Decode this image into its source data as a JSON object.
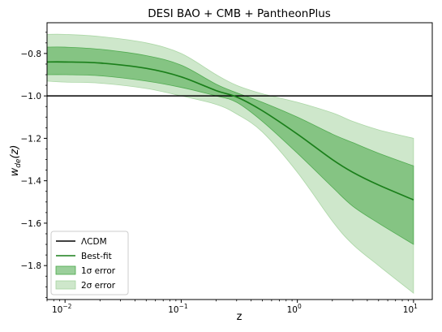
{
  "chart_data": {
    "type": "line",
    "title": "DESI BAO + CMB + PantheonPlus",
    "xlabel": "z",
    "ylabel": "w_de(z)",
    "xscale": "log",
    "xlim": [
      0.007,
      14.5
    ],
    "ylim": [
      -1.96,
      -0.655
    ],
    "grid": false,
    "legend_position": "lower-left",
    "x_ticks": [
      {
        "value": 0.01,
        "base": "10",
        "exp": "−2"
      },
      {
        "value": 0.1,
        "base": "10",
        "exp": "−1"
      },
      {
        "value": 1,
        "base": "10",
        "exp": "0"
      },
      {
        "value": 10,
        "base": "10",
        "exp": "1"
      }
    ],
    "y_ticks": [
      {
        "value": -0.8,
        "label": "−0.8"
      },
      {
        "value": -1.0,
        "label": "−1.0"
      },
      {
        "value": -1.2,
        "label": "−1.2"
      },
      {
        "value": -1.4,
        "label": "−1.4"
      },
      {
        "value": -1.6,
        "label": "−1.6"
      },
      {
        "value": -1.8,
        "label": "−1.8"
      }
    ],
    "x": [
      0.007,
      0.01,
      0.02,
      0.05,
      0.1,
      0.2,
      0.3,
      0.5,
      1,
      2,
      3,
      5,
      10
    ],
    "series": [
      {
        "name": "ΛCDM",
        "kind": "hline",
        "y": -1.0,
        "color": "#000000"
      },
      {
        "name": "Best-fit",
        "kind": "line",
        "color": "#1a7f1a",
        "values": [
          -0.84,
          -0.84,
          -0.845,
          -0.87,
          -0.91,
          -0.975,
          -1.005,
          -1.07,
          -1.18,
          -1.3,
          -1.36,
          -1.42,
          -1.49
        ]
      },
      {
        "name": "1σ error",
        "kind": "band",
        "color": "#49a749",
        "opacity": 0.55,
        "lower": [
          -0.9,
          -0.9,
          -0.905,
          -0.93,
          -0.96,
          -1.0,
          -1.03,
          -1.12,
          -1.27,
          -1.43,
          -1.52,
          -1.6,
          -1.7
        ],
        "upper": [
          -0.77,
          -0.77,
          -0.78,
          -0.81,
          -0.855,
          -0.945,
          -0.985,
          -1.03,
          -1.1,
          -1.18,
          -1.22,
          -1.27,
          -1.33
        ]
      },
      {
        "name": "2σ error",
        "kind": "band",
        "color": "#a5d4a0",
        "opacity": 0.55,
        "lower": [
          -0.93,
          -0.935,
          -0.94,
          -0.965,
          -1.0,
          -1.04,
          -1.085,
          -1.17,
          -1.36,
          -1.59,
          -1.7,
          -1.8,
          -1.93
        ],
        "upper": [
          -0.71,
          -0.71,
          -0.72,
          -0.75,
          -0.8,
          -0.9,
          -0.95,
          -0.99,
          -1.03,
          -1.08,
          -1.12,
          -1.16,
          -1.2
        ]
      }
    ],
    "legend": [
      {
        "label": "ΛCDM",
        "kind": "line",
        "color": "#000000"
      },
      {
        "label": "Best-fit",
        "kind": "line",
        "color": "#1a7f1a"
      },
      {
        "label": "1σ error",
        "kind": "patch",
        "color": "#49a749",
        "opacity": 0.55
      },
      {
        "label": "2σ error",
        "kind": "patch",
        "color": "#a5d4a0",
        "opacity": 0.55
      }
    ]
  }
}
